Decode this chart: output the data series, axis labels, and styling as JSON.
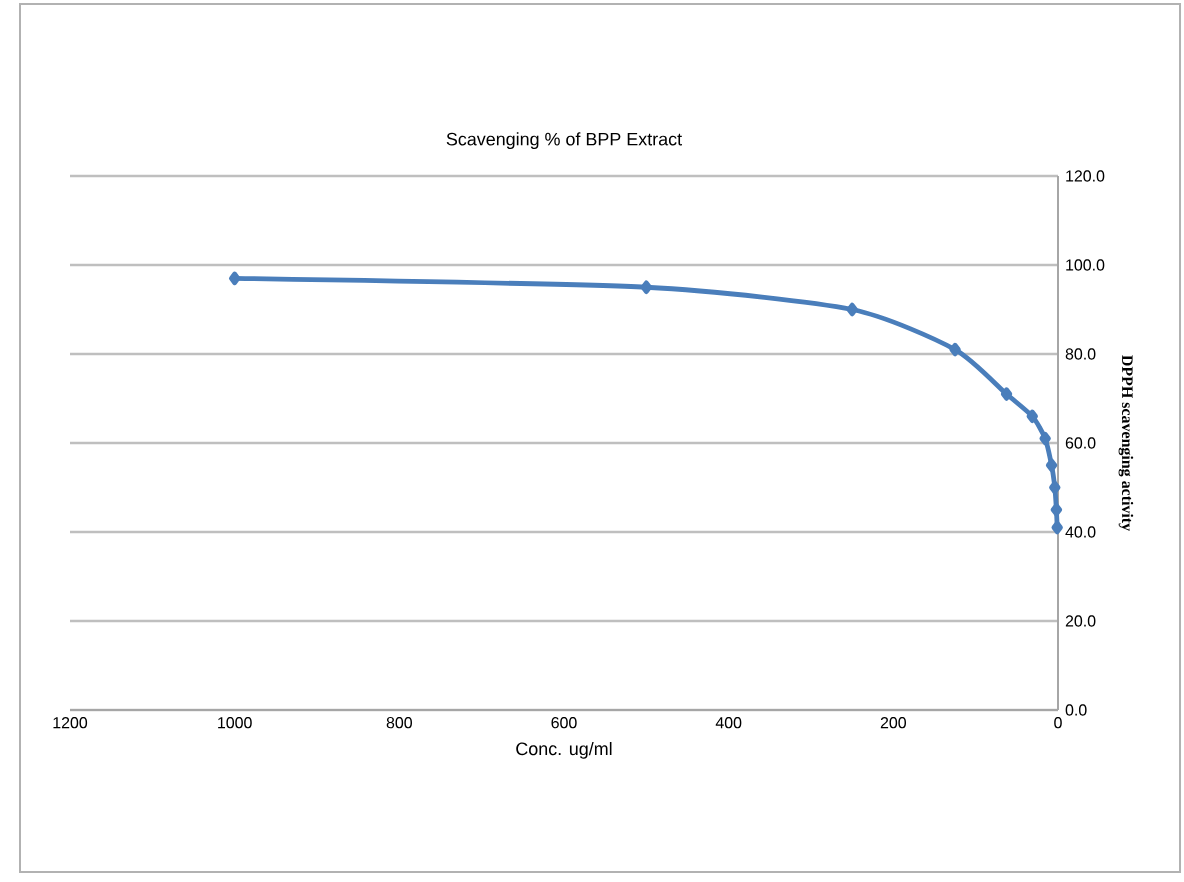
{
  "chart_data": {
    "type": "line",
    "title": "Scavenging % of BPP Extract",
    "xlabel": "Conc. ug/ml",
    "ylabel": "DPPH scavenging activity",
    "x": [
      1000,
      500,
      250,
      125,
      62.5,
      31.25,
      15.6,
      7.8,
      3.9,
      1.95,
      0.98
    ],
    "series": [
      {
        "color": "#4a7ebb",
        "values": [
          97,
          95,
          90,
          81,
          71,
          66,
          61,
          55,
          50,
          45,
          41
        ]
      }
    ],
    "xlim": [
      1200,
      0
    ],
    "xticks": [
      1200,
      1000,
      800,
      600,
      400,
      200,
      0
    ],
    "ylim": [
      0,
      120
    ],
    "yticks": [
      {
        "value": 0,
        "label": "0.0"
      },
      {
        "value": 20,
        "label": "20.0"
      },
      {
        "value": 40,
        "label": "40.0"
      },
      {
        "value": 60,
        "label": "60.0"
      },
      {
        "value": 80,
        "label": "80.0"
      },
      {
        "value": 100,
        "label": "100.0"
      },
      {
        "value": 120,
        "label": "120.0"
      }
    ],
    "grid": "y",
    "marker": "diamond",
    "line_style": "solid"
  }
}
